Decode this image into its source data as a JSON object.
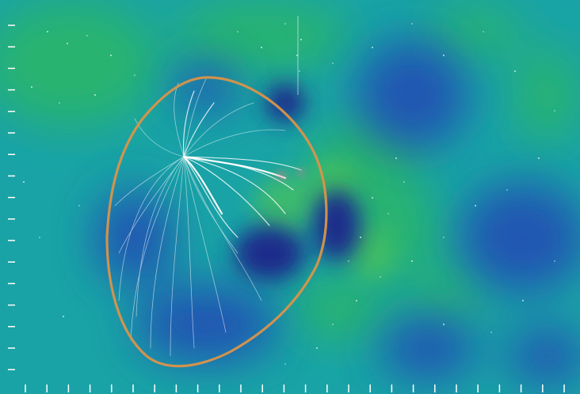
{
  "image": {
    "subject": "density-field-with-flowlines",
    "colors": {
      "background": "#1aa6a6",
      "void": "#1a3fb0",
      "deep_void": "#1b2a8a",
      "filament": "#2bb86a",
      "flowline": "#ffffff",
      "boundary": "#d9944a",
      "tick": "#ffffff"
    },
    "axis_ticks": {
      "left_count": 17,
      "bottom_count": 26
    }
  }
}
